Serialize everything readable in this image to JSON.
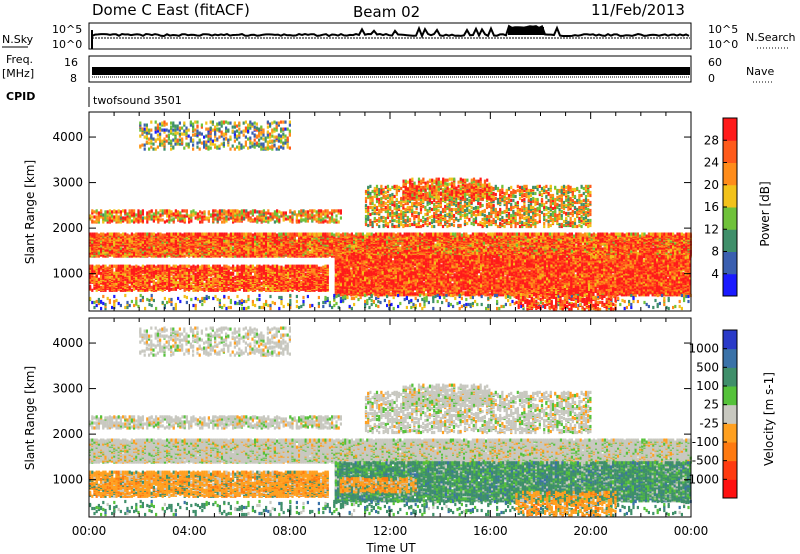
{
  "header": {
    "station": "Dome C East (fitACF)",
    "beam": "Beam 02",
    "date": "11/Feb/2013"
  },
  "status_panels": {
    "nsky_label": "N.Sky",
    "nsky_ticks": [
      "10^5",
      "10^0"
    ],
    "nsearch_label": "N.Search",
    "freq_label_top": "Freq.",
    "freq_label_unit": "[MHz]",
    "freq_ticks": [
      "16",
      "8"
    ],
    "nave_label": "Nave",
    "nave_ticks": [
      "60",
      "0"
    ],
    "cpid_label": "CPID",
    "cpid_value": "twofsound 3501"
  },
  "chart_data": [
    {
      "type": "heatmap",
      "name": "power",
      "ylabel": "Slant Range [km]",
      "xlim": [
        "00:00",
        "24:00"
      ],
      "ylim": [
        180,
        4550
      ],
      "yticks": [
        1000,
        2000,
        3000,
        4000
      ],
      "colorbar": {
        "label": "Power [dB]",
        "ticks": [
          4,
          8,
          12,
          16,
          20,
          24,
          28
        ],
        "colors": [
          "#1a1aff",
          "#3a5fb0",
          "#3f8f6a",
          "#6fc23a",
          "#f2c21a",
          "#ff8c1a",
          "#ff5a1a",
          "#ff1a1a"
        ]
      }
    },
    {
      "type": "heatmap",
      "name": "velocity",
      "xlabel": "Time UT",
      "ylabel": "Slant Range [km]",
      "xlim": [
        "00:00",
        "24:00"
      ],
      "xticks": [
        "00:00",
        "04:00",
        "08:00",
        "12:00",
        "16:00",
        "20:00",
        "00:00"
      ],
      "ylim": [
        180,
        4550
      ],
      "yticks": [
        1000,
        2000,
        3000,
        4000
      ],
      "colorbar": {
        "label": "Velocity [m s-1]",
        "ticks": [
          1000,
          500,
          100,
          25,
          -25,
          -100,
          -500,
          -1000
        ],
        "colors": [
          "#2a3ac8",
          "#3a72a8",
          "#3f8f6a",
          "#55c23a",
          "#c8c8c0",
          "#ffa020",
          "#ff7a10",
          "#ff3a10",
          "#ff1010"
        ]
      }
    }
  ]
}
